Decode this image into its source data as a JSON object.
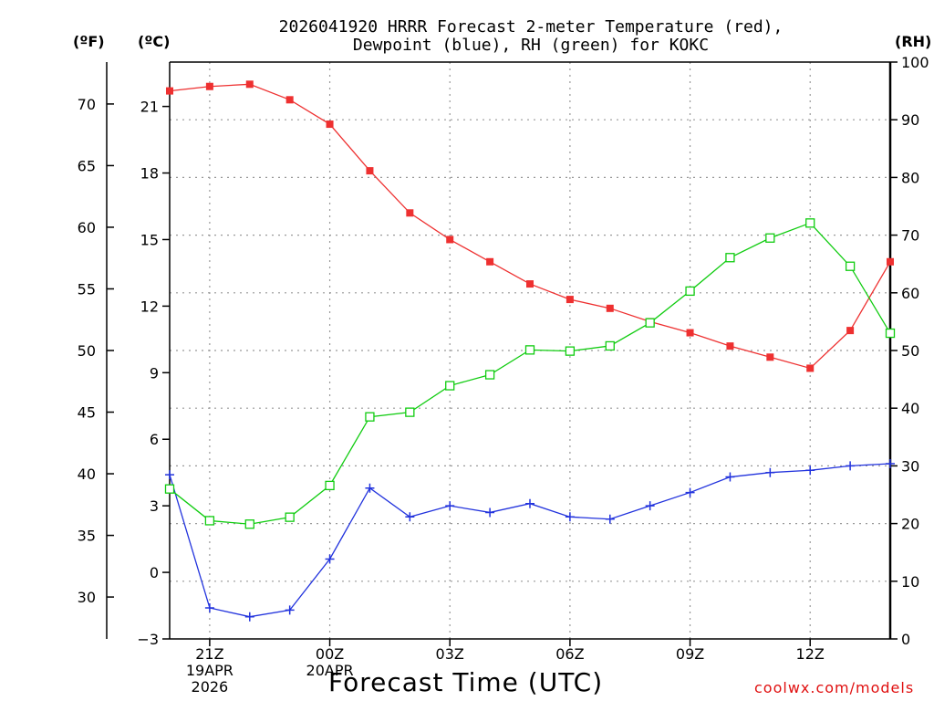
{
  "chart_data": {
    "type": "line",
    "title": [
      "2026041920 HRRR Forecast 2-meter Temperature (red),",
      "Dewpoint (blue), RH (green) for KOKC"
    ],
    "xlabel": "Forecast Time (UTC)",
    "left_axis_f": {
      "label": "(ºF)",
      "ticks": [
        30,
        35,
        40,
        45,
        50,
        55,
        60,
        65,
        70
      ]
    },
    "left_axis_c": {
      "label": "(ºC)",
      "ticks": [
        -3,
        0,
        3,
        6,
        9,
        12,
        15,
        18,
        21
      ],
      "range": [
        -3,
        23
      ]
    },
    "right_axis_rh": {
      "label": "(RH)",
      "ticks": [
        0,
        10,
        20,
        30,
        40,
        50,
        60,
        70,
        80,
        90,
        100
      ],
      "range": [
        0,
        100
      ]
    },
    "x_range": [
      0,
      18
    ],
    "x_ticks": [
      {
        "x": 1,
        "lines": [
          "21Z",
          "19APR",
          "2026"
        ]
      },
      {
        "x": 4,
        "lines": [
          "00Z",
          "20APR"
        ]
      },
      {
        "x": 7,
        "lines": [
          "03Z"
        ]
      },
      {
        "x": 10,
        "lines": [
          "06Z"
        ]
      },
      {
        "x": 13,
        "lines": [
          "09Z"
        ]
      },
      {
        "x": 16,
        "lines": [
          "12Z"
        ]
      }
    ],
    "x": [
      0,
      1,
      2,
      3,
      4,
      5,
      6,
      7,
      8,
      9,
      10,
      11,
      12,
      13,
      14,
      15,
      16,
      17,
      18
    ],
    "series": [
      {
        "name": "Temperature",
        "axis": "c",
        "color": "#ee3030",
        "marker": "filled-square",
        "values": [
          21.7,
          21.9,
          22.0,
          21.3,
          20.2,
          18.1,
          16.2,
          15.0,
          14.0,
          13.0,
          12.3,
          11.9,
          11.3,
          10.8,
          10.2,
          9.7,
          9.2,
          10.9,
          14.0
        ]
      },
      {
        "name": "Dewpoint",
        "axis": "c",
        "color": "#2233dd",
        "marker": "plus",
        "values": [
          4.4,
          -1.6,
          -2.0,
          -1.7,
          0.6,
          3.8,
          2.5,
          3.0,
          2.7,
          3.1,
          2.5,
          2.4,
          3.0,
          3.6,
          4.3,
          4.5,
          4.6,
          4.8,
          4.9
        ]
      },
      {
        "name": "RH",
        "axis": "rh",
        "color": "#10cc10",
        "marker": "open-square",
        "values": [
          26.0,
          20.5,
          19.9,
          21.1,
          26.6,
          38.5,
          39.3,
          43.9,
          45.8,
          50.1,
          49.9,
          50.8,
          54.8,
          60.3,
          66.1,
          69.5,
          72.1,
          64.6,
          53.0
        ]
      }
    ]
  },
  "credit": "coolwx.com/models"
}
